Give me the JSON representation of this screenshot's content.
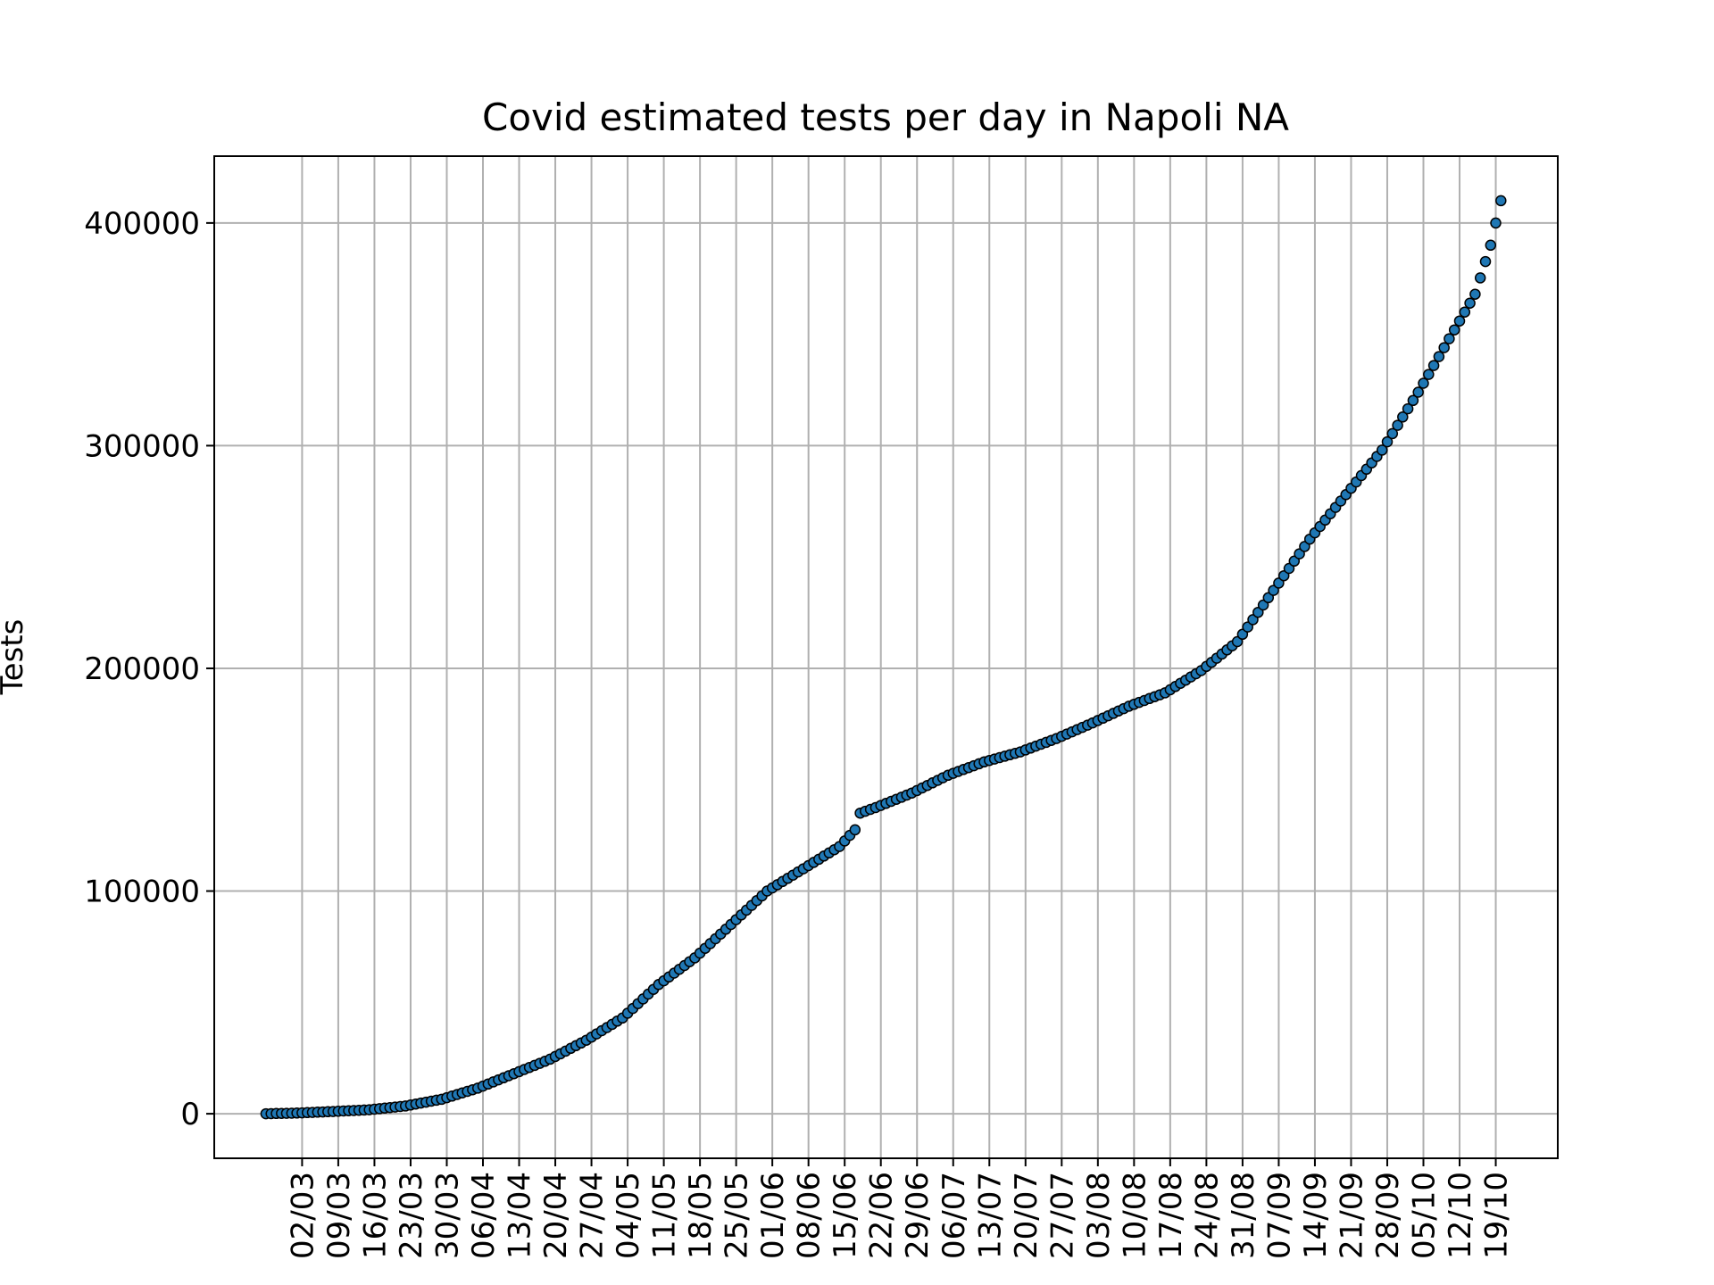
{
  "chart_data": {
    "type": "scatter",
    "title": "Covid estimated tests per day in Napoli NA",
    "xlabel": "",
    "ylabel": "Tests",
    "grid": true,
    "legend": "none",
    "marker_color": "#1f77b4",
    "marker_edge_color": "#000000",
    "ylim": [
      -20000,
      430000
    ],
    "xlim": [
      "2020-02-14",
      "2020-10-31"
    ],
    "y_ticks": [
      0,
      100000,
      200000,
      300000,
      400000
    ],
    "y_tick_labels": [
      "0",
      "100000",
      "200000",
      "300000",
      "400000"
    ],
    "x_ticks": [
      "2020-03-02",
      "2020-03-09",
      "2020-03-16",
      "2020-03-23",
      "2020-03-30",
      "2020-04-06",
      "2020-04-13",
      "2020-04-20",
      "2020-04-27",
      "2020-05-04",
      "2020-05-11",
      "2020-05-18",
      "2020-05-25",
      "2020-06-01",
      "2020-06-08",
      "2020-06-15",
      "2020-06-22",
      "2020-06-29",
      "2020-07-06",
      "2020-07-13",
      "2020-07-20",
      "2020-07-27",
      "2020-08-03",
      "2020-08-10",
      "2020-08-17",
      "2020-08-24",
      "2020-08-31",
      "2020-09-07",
      "2020-09-14",
      "2020-09-21",
      "2020-09-28",
      "2020-10-05",
      "2020-10-12",
      "2020-10-19"
    ],
    "x_tick_labels": [
      "02/03",
      "09/03",
      "16/03",
      "23/03",
      "30/03",
      "06/04",
      "13/04",
      "20/04",
      "27/04",
      "04/05",
      "11/05",
      "18/05",
      "25/05",
      "01/06",
      "08/06",
      "15/06",
      "22/06",
      "29/06",
      "06/07",
      "13/07",
      "20/07",
      "27/07",
      "03/08",
      "10/08",
      "17/08",
      "24/08",
      "31/08",
      "07/09",
      "14/09",
      "21/09",
      "28/09",
      "05/10",
      "12/10",
      "19/10"
    ],
    "series": [
      {
        "points": [
          [
            "2020-02-24",
            0
          ],
          [
            "2020-03-01",
            300
          ],
          [
            "2020-03-08",
            1000
          ],
          [
            "2020-03-15",
            1800
          ],
          [
            "2020-03-22",
            3500
          ],
          [
            "2020-03-29",
            6500
          ],
          [
            "2020-04-05",
            11500
          ],
          [
            "2020-04-12",
            18000
          ],
          [
            "2020-04-19",
            24500
          ],
          [
            "2020-04-26",
            33000
          ],
          [
            "2020-05-03",
            43000
          ],
          [
            "2020-05-10",
            58000
          ],
          [
            "2020-05-17",
            70000
          ],
          [
            "2020-05-24",
            85000
          ],
          [
            "2020-05-31",
            100000
          ],
          [
            "2020-06-07",
            110000
          ],
          [
            "2020-06-14",
            120000
          ],
          [
            "2020-06-17",
            127500
          ],
          [
            "2020-06-18",
            135000
          ],
          [
            "2020-06-21",
            137500
          ],
          [
            "2020-06-28",
            144000
          ],
          [
            "2020-07-05",
            152000
          ],
          [
            "2020-07-12",
            158000
          ],
          [
            "2020-07-19",
            162500
          ],
          [
            "2020-07-26",
            168500
          ],
          [
            "2020-08-02",
            175500
          ],
          [
            "2020-08-09",
            183000
          ],
          [
            "2020-08-16",
            189000
          ],
          [
            "2020-08-23",
            199000
          ],
          [
            "2020-08-30",
            212000
          ],
          [
            "2020-09-06",
            235000
          ],
          [
            "2020-09-13",
            258000
          ],
          [
            "2020-09-20",
            278000
          ],
          [
            "2020-09-27",
            298000
          ],
          [
            "2020-10-04",
            324000
          ],
          [
            "2020-10-11",
            352000
          ],
          [
            "2020-10-15",
            368000
          ],
          [
            "2020-10-18",
            390000
          ],
          [
            "2020-10-20",
            410000
          ]
        ]
      }
    ]
  }
}
